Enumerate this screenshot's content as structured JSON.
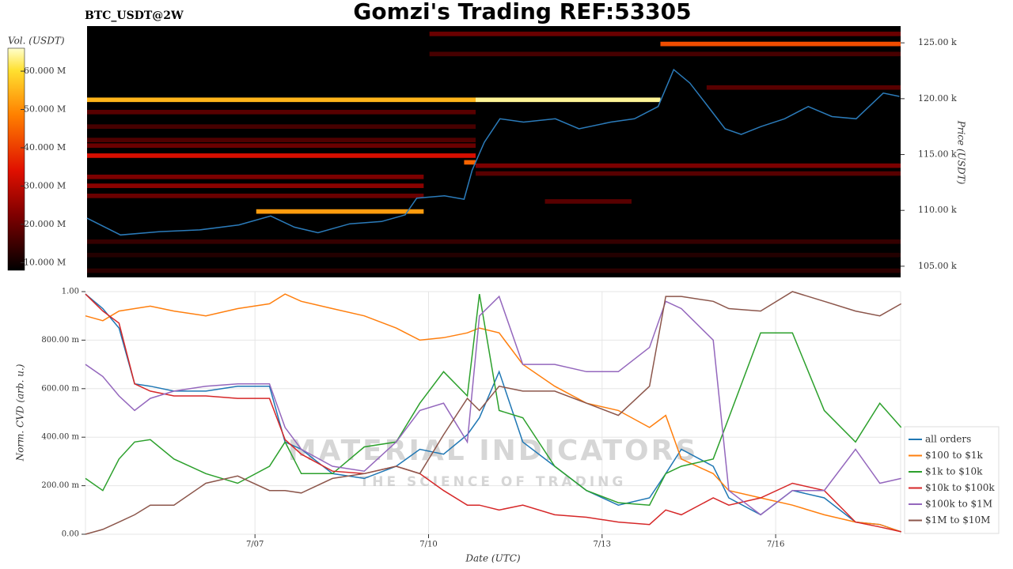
{
  "chart_data": [
    {
      "type": "heatmap",
      "title": "Gomzi's Trading REF:53305",
      "subtitle": "BTC_USDT@2W",
      "ylabel": "Price (USDT)",
      "colorbar_label": "Vol. (USDT)",
      "xlim": [
        4.07,
        18.16
      ],
      "ylim": [
        104000,
        126500
      ],
      "yticks": [
        {
          "value": 105000,
          "label": "105.00 k"
        },
        {
          "value": 110000,
          "label": "110.00 k"
        },
        {
          "value": 115000,
          "label": "115.00 k"
        },
        {
          "value": 120000,
          "label": "120.00 k"
        },
        {
          "value": 125000,
          "label": "125.00 k"
        }
      ],
      "zlim": [
        8000000,
        66000000
      ],
      "zticks": [
        {
          "value": 10000000,
          "label": "10.000 M"
        },
        {
          "value": 20000000,
          "label": "20.000 M"
        },
        {
          "value": 30000000,
          "label": "30.000 M"
        },
        {
          "value": 40000000,
          "label": "40.000 M"
        },
        {
          "value": 50000000,
          "label": "50.000 M"
        },
        {
          "value": 60000000,
          "label": "60.000 M"
        }
      ],
      "bands": {
        "price": [
          119900,
          119900,
          124900,
          114900,
          109900,
          113000,
          112200,
          111300,
          118800,
          117500,
          116300,
          114000,
          113300,
          125800,
          124000,
          121000,
          107200,
          106000,
          110800,
          115800,
          114300,
          104600
        ],
        "start": [
          4.07,
          10.8,
          14.0,
          4.07,
          7.0,
          4.07,
          4.07,
          4.07,
          4.07,
          4.07,
          4.07,
          10.8,
          10.8,
          10.0,
          10.0,
          14.8,
          4.07,
          4.07,
          12.0,
          4.07,
          10.6,
          4.07
        ],
        "end": [
          10.8,
          14.0,
          18.16,
          10.8,
          9.9,
          9.9,
          9.9,
          9.9,
          10.8,
          10.8,
          10.8,
          18.16,
          18.16,
          18.16,
          18.16,
          18.16,
          18.16,
          18.16,
          13.5,
          10.8,
          10.8,
          18.16
        ],
        "volume": [
          55000000,
          64000000,
          42000000,
          33000000,
          52000000,
          22000000,
          24000000,
          20000000,
          18000000,
          16000000,
          17000000,
          22000000,
          18000000,
          20000000,
          16000000,
          18000000,
          14000000,
          12000000,
          18000000,
          20000000,
          45000000,
          13000000
        ]
      },
      "price_line": {
        "color": "#2b7bba",
        "x": [
          4.07,
          4.65,
          5.33,
          6.02,
          6.7,
          7.25,
          7.66,
          8.07,
          8.62,
          9.17,
          9.58,
          9.78,
          10.26,
          10.6,
          10.74,
          10.95,
          11.22,
          11.63,
          12.18,
          12.59,
          13.14,
          13.55,
          13.96,
          14.23,
          14.51,
          14.78,
          15.12,
          15.4,
          15.74,
          16.15,
          16.56,
          16.97,
          17.39,
          17.86,
          18.14
        ],
        "values": [
          109300,
          107800,
          108100,
          108250,
          108700,
          109500,
          108500,
          108000,
          108800,
          109000,
          109600,
          111100,
          111300,
          111000,
          113600,
          116100,
          118200,
          117900,
          118200,
          117300,
          117900,
          118200,
          119300,
          122600,
          121400,
          119600,
          117300,
          116800,
          117500,
          118200,
          119300,
          118400,
          118200,
          120500,
          120200
        ]
      }
    },
    {
      "type": "line",
      "xlabel": "Date (UTC)",
      "ylabel": "Norm. CVD (arb. u.)",
      "watermark": [
        "MATERIAL INDICATORS",
        "THE SCIENCE OF TRADING"
      ],
      "xlim": [
        4.07,
        18.16
      ],
      "ylim": [
        0,
        1
      ],
      "xticks": [
        {
          "value": 7,
          "label": "7/07"
        },
        {
          "value": 10,
          "label": "7/10"
        },
        {
          "value": 13,
          "label": "7/13"
        },
        {
          "value": 16,
          "label": "7/16"
        }
      ],
      "yticks": [
        {
          "value": 0,
          "label": "0.00"
        },
        {
          "value": 0.2,
          "label": "200.00 m"
        },
        {
          "value": 0.4,
          "label": "400.00 m"
        },
        {
          "value": 0.6,
          "label": "600.00 m"
        },
        {
          "value": 0.8,
          "label": "800.00 m"
        },
        {
          "value": 1,
          "label": "1.00"
        }
      ],
      "grid": true,
      "legend": "right",
      "x": [
        4.07,
        4.37,
        4.65,
        4.92,
        5.19,
        5.6,
        6.15,
        6.7,
        7.25,
        7.52,
        7.8,
        8.34,
        8.89,
        9.44,
        9.85,
        10.26,
        10.67,
        10.88,
        11.22,
        11.63,
        12.18,
        12.73,
        13.28,
        13.82,
        14.1,
        14.37,
        14.92,
        15.19,
        15.74,
        16.29,
        16.84,
        17.38,
        17.8,
        18.17
      ],
      "series": [
        {
          "name": "all orders",
          "color": "#1f77b4",
          "values": [
            0.99,
            0.93,
            0.85,
            0.62,
            0.61,
            0.59,
            0.59,
            0.61,
            0.61,
            0.38,
            0.35,
            0.25,
            0.23,
            0.28,
            0.35,
            0.33,
            0.41,
            0.48,
            0.67,
            0.38,
            0.28,
            0.18,
            0.12,
            0.15,
            0.25,
            0.35,
            0.28,
            0.15,
            0.08,
            0.18,
            0.15,
            0.05,
            0.04,
            0.01
          ]
        },
        {
          "name": "$100 to $1k",
          "color": "#ff7f0e",
          "values": [
            0.9,
            0.88,
            0.92,
            0.93,
            0.94,
            0.92,
            0.9,
            0.93,
            0.95,
            0.99,
            0.96,
            0.93,
            0.9,
            0.85,
            0.8,
            0.81,
            0.83,
            0.85,
            0.83,
            0.7,
            0.61,
            0.54,
            0.51,
            0.44,
            0.49,
            0.31,
            0.25,
            0.18,
            0.15,
            0.12,
            0.08,
            0.05,
            0.04,
            0.01
          ]
        },
        {
          "name": "$1k to $10k",
          "color": "#2ca02c",
          "values": [
            0.23,
            0.18,
            0.31,
            0.38,
            0.39,
            0.31,
            0.25,
            0.21,
            0.28,
            0.38,
            0.25,
            0.25,
            0.36,
            0.38,
            0.54,
            0.67,
            0.57,
            0.99,
            0.51,
            0.48,
            0.28,
            0.18,
            0.13,
            0.12,
            0.25,
            0.28,
            0.31,
            0.48,
            0.83,
            0.83,
            0.51,
            0.38,
            0.54,
            0.44
          ]
        },
        {
          "name": "$10k to $100k",
          "color": "#d62728",
          "values": [
            0.99,
            0.92,
            0.87,
            0.62,
            0.59,
            0.57,
            0.57,
            0.56,
            0.56,
            0.39,
            0.33,
            0.26,
            0.25,
            0.28,
            0.25,
            0.18,
            0.12,
            0.12,
            0.1,
            0.12,
            0.08,
            0.07,
            0.05,
            0.04,
            0.1,
            0.08,
            0.15,
            0.12,
            0.15,
            0.21,
            0.18,
            0.05,
            0.03,
            0.01
          ]
        },
        {
          "name": "$100k to $1M",
          "color": "#9467bd",
          "values": [
            0.7,
            0.65,
            0.57,
            0.51,
            0.56,
            0.59,
            0.61,
            0.62,
            0.62,
            0.44,
            0.35,
            0.28,
            0.26,
            0.38,
            0.51,
            0.54,
            0.38,
            0.9,
            0.98,
            0.7,
            0.7,
            0.67,
            0.67,
            0.77,
            0.96,
            0.93,
            0.8,
            0.18,
            0.08,
            0.18,
            0.18,
            0.35,
            0.21,
            0.23
          ]
        },
        {
          "name": "$1M to $10M",
          "color": "#8c564b",
          "values": [
            0,
            0.02,
            0.05,
            0.08,
            0.12,
            0.12,
            0.21,
            0.24,
            0.18,
            0.18,
            0.17,
            0.23,
            0.25,
            0.28,
            0.25,
            0.41,
            0.56,
            0.51,
            0.61,
            0.59,
            0.59,
            0.54,
            0.49,
            0.61,
            0.98,
            0.98,
            0.96,
            0.93,
            0.92,
            1.0,
            0.96,
            0.92,
            0.9,
            0.95
          ]
        }
      ]
    }
  ]
}
